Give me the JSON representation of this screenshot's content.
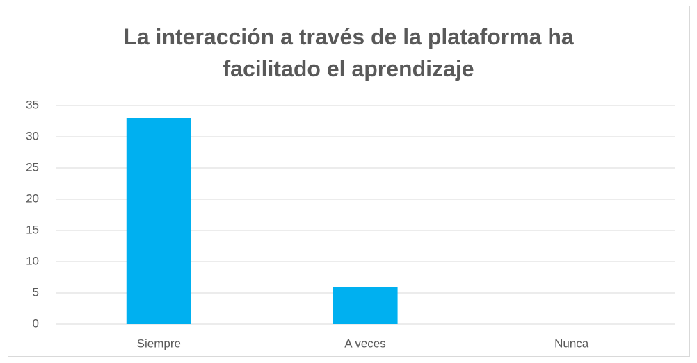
{
  "chart_data": {
    "type": "bar",
    "title": "La interacción a través de la plataforma ha facilitado el aprendizaje",
    "categories": [
      "Siempre",
      "A veces",
      "Nunca"
    ],
    "values": [
      33,
      6,
      0
    ],
    "color": "#00b0f0",
    "ylim": [
      0,
      35
    ],
    "yticks": [
      0,
      5,
      10,
      15,
      20,
      25,
      30,
      35
    ],
    "grid": true
  }
}
